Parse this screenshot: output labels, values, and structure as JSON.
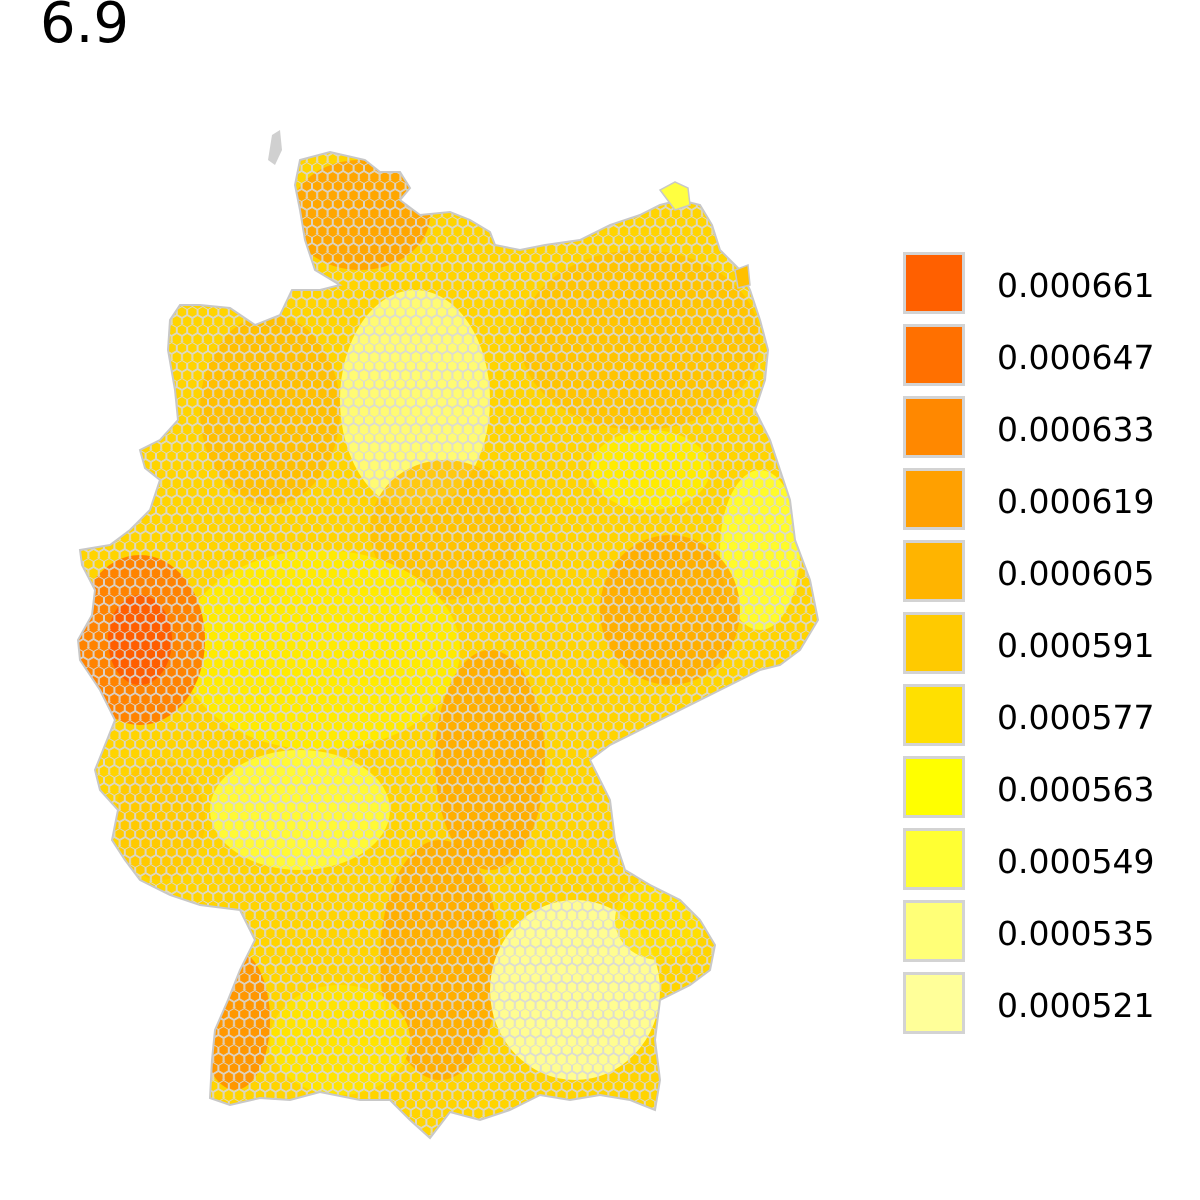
{
  "title": "6.9",
  "map": {
    "region": "Germany",
    "tile_shape": "hexagon",
    "tile_border_color": "#d3d3d3",
    "outline_color": "#c8c8c8"
  },
  "legend": {
    "items": [
      {
        "label": "0.000661",
        "color": "#ff6000"
      },
      {
        "label": "0.000647",
        "color": "#ff7000"
      },
      {
        "label": "0.000633",
        "color": "#ff8800"
      },
      {
        "label": "0.000619",
        "color": "#ffa000"
      },
      {
        "label": "0.000605",
        "color": "#ffb400"
      },
      {
        "label": "0.000591",
        "color": "#ffca00"
      },
      {
        "label": "0.000577",
        "color": "#ffe000"
      },
      {
        "label": "0.000563",
        "color": "#ffff00"
      },
      {
        "label": "0.000549",
        "color": "#ffff33"
      },
      {
        "label": "0.000535",
        "color": "#ffff77"
      },
      {
        "label": "0.000521",
        "color": "#ffff99"
      }
    ]
  }
}
